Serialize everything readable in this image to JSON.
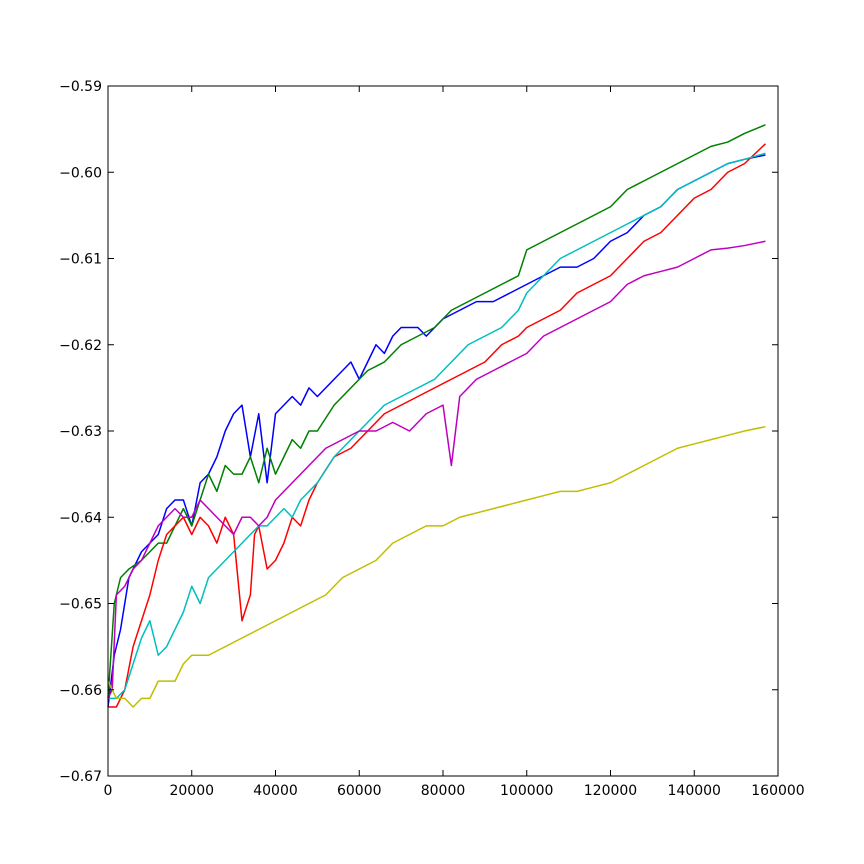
{
  "chart_data": {
    "type": "line",
    "title": "",
    "xlabel": "",
    "ylabel": "",
    "xlim": [
      0,
      160000
    ],
    "ylim": [
      -0.67,
      -0.59
    ],
    "x_ticks": [
      0,
      20000,
      40000,
      60000,
      80000,
      100000,
      120000,
      140000,
      160000
    ],
    "x_tick_labels": [
      "0",
      "20000",
      "40000",
      "60000",
      "80000",
      "100000",
      "120000",
      "140000",
      "160000"
    ],
    "y_ticks": [
      -0.67,
      -0.66,
      -0.65,
      -0.64,
      -0.63,
      -0.62,
      -0.61,
      -0.6,
      -0.59
    ],
    "y_tick_labels": [
      "−0.67",
      "−0.66",
      "−0.65",
      "−0.64",
      "−0.63",
      "−0.62",
      "−0.61",
      "−0.60",
      "−0.59"
    ],
    "grid": false,
    "legend": "none",
    "series": [
      {
        "color": "#0000ff",
        "x": [
          0,
          1500,
          3000,
          5000,
          8000,
          10000,
          12000,
          14000,
          16000,
          18000,
          20000,
          22000,
          24000,
          26000,
          28000,
          30000,
          32000,
          34000,
          36000,
          38000,
          40000,
          42000,
          44000,
          46000,
          48000,
          50000,
          54000,
          58000,
          60000,
          62000,
          64000,
          66000,
          68000,
          70000,
          72000,
          74000,
          76000,
          80000,
          84000,
          88000,
          92000,
          96000,
          100000,
          104000,
          108000,
          112000,
          116000,
          120000,
          124000,
          128000,
          132000,
          136000,
          140000,
          144000,
          148000,
          152000,
          157000
        ],
        "y": [
          -0.662,
          -0.656,
          -0.653,
          -0.647,
          -0.644,
          -0.643,
          -0.642,
          -0.639,
          -0.638,
          -0.638,
          -0.641,
          -0.636,
          -0.635,
          -0.633,
          -0.63,
          -0.628,
          -0.627,
          -0.633,
          -0.628,
          -0.636,
          -0.628,
          -0.627,
          -0.626,
          -0.627,
          -0.625,
          -0.626,
          -0.624,
          -0.622,
          -0.624,
          -0.622,
          -0.62,
          -0.621,
          -0.619,
          -0.618,
          -0.618,
          -0.618,
          -0.619,
          -0.617,
          -0.616,
          -0.615,
          -0.615,
          -0.614,
          -0.613,
          -0.612,
          -0.611,
          -0.611,
          -0.61,
          -0.608,
          -0.607,
          -0.605,
          -0.604,
          -0.602,
          -0.601,
          -0.6,
          -0.599,
          -0.5985,
          -0.598
        ]
      },
      {
        "color": "#008000",
        "x": [
          0,
          1500,
          3000,
          5000,
          8000,
          10000,
          12000,
          14000,
          16000,
          18000,
          20000,
          22000,
          24000,
          26000,
          28000,
          30000,
          32000,
          34000,
          36000,
          38000,
          40000,
          42000,
          44000,
          46000,
          48000,
          50000,
          54000,
          58000,
          62000,
          66000,
          70000,
          74000,
          78000,
          82000,
          86000,
          90000,
          94000,
          98000,
          100000,
          104000,
          108000,
          112000,
          116000,
          120000,
          124000,
          128000,
          132000,
          136000,
          140000,
          144000,
          148000,
          152000,
          157000
        ],
        "y": [
          -0.661,
          -0.65,
          -0.647,
          -0.646,
          -0.645,
          -0.644,
          -0.643,
          -0.643,
          -0.641,
          -0.639,
          -0.641,
          -0.638,
          -0.635,
          -0.637,
          -0.634,
          -0.635,
          -0.635,
          -0.633,
          -0.636,
          -0.632,
          -0.635,
          -0.633,
          -0.631,
          -0.632,
          -0.63,
          -0.63,
          -0.627,
          -0.625,
          -0.623,
          -0.622,
          -0.62,
          -0.619,
          -0.618,
          -0.616,
          -0.615,
          -0.614,
          -0.613,
          -0.612,
          -0.609,
          -0.608,
          -0.607,
          -0.606,
          -0.605,
          -0.604,
          -0.602,
          -0.601,
          -0.6,
          -0.599,
          -0.598,
          -0.597,
          -0.5965,
          -0.5955,
          -0.5945
        ]
      },
      {
        "color": "#ff0000",
        "x": [
          0,
          2000,
          4000,
          6000,
          8000,
          10000,
          12000,
          14000,
          16000,
          18000,
          20000,
          22000,
          24000,
          26000,
          28000,
          30000,
          32000,
          34000,
          35000,
          36000,
          38000,
          40000,
          42000,
          44000,
          46000,
          48000,
          50000,
          54000,
          58000,
          62000,
          66000,
          70000,
          74000,
          78000,
          82000,
          86000,
          90000,
          94000,
          98000,
          100000,
          104000,
          108000,
          112000,
          116000,
          120000,
          124000,
          128000,
          132000,
          136000,
          140000,
          144000,
          148000,
          152000,
          157000
        ],
        "y": [
          -0.662,
          -0.662,
          -0.66,
          -0.655,
          -0.652,
          -0.649,
          -0.645,
          -0.642,
          -0.641,
          -0.64,
          -0.642,
          -0.64,
          -0.641,
          -0.643,
          -0.64,
          -0.642,
          -0.652,
          -0.649,
          -0.642,
          -0.641,
          -0.646,
          -0.645,
          -0.643,
          -0.64,
          -0.641,
          -0.638,
          -0.636,
          -0.633,
          -0.632,
          -0.63,
          -0.628,
          -0.627,
          -0.626,
          -0.625,
          -0.624,
          -0.623,
          -0.622,
          -0.62,
          -0.619,
          -0.618,
          -0.617,
          -0.616,
          -0.614,
          -0.613,
          -0.612,
          -0.61,
          -0.608,
          -0.607,
          -0.605,
          -0.603,
          -0.602,
          -0.6,
          -0.599,
          -0.5967
        ]
      },
      {
        "color": "#00bfbf",
        "x": [
          0,
          2000,
          4000,
          6000,
          8000,
          10000,
          12000,
          14000,
          16000,
          18000,
          20000,
          22000,
          24000,
          26000,
          28000,
          30000,
          32000,
          34000,
          36000,
          38000,
          40000,
          42000,
          44000,
          46000,
          48000,
          50000,
          54000,
          58000,
          62000,
          66000,
          70000,
          74000,
          78000,
          82000,
          86000,
          90000,
          94000,
          98000,
          100000,
          104000,
          108000,
          112000,
          116000,
          120000,
          124000,
          128000,
          132000,
          136000,
          140000,
          144000,
          148000,
          152000,
          157000
        ],
        "y": [
          -0.661,
          -0.661,
          -0.66,
          -0.657,
          -0.654,
          -0.652,
          -0.656,
          -0.655,
          -0.653,
          -0.651,
          -0.648,
          -0.65,
          -0.647,
          -0.646,
          -0.645,
          -0.644,
          -0.643,
          -0.642,
          -0.641,
          -0.641,
          -0.64,
          -0.639,
          -0.64,
          -0.638,
          -0.637,
          -0.636,
          -0.633,
          -0.631,
          -0.629,
          -0.627,
          -0.626,
          -0.625,
          -0.624,
          -0.622,
          -0.62,
          -0.619,
          -0.618,
          -0.616,
          -0.614,
          -0.612,
          -0.61,
          -0.609,
          -0.608,
          -0.607,
          -0.606,
          -0.605,
          -0.604,
          -0.602,
          -0.601,
          -0.6,
          -0.599,
          -0.5985,
          -0.5978
        ]
      },
      {
        "color": "#bf00bf",
        "x": [
          0,
          1000,
          2000,
          4000,
          6000,
          8000,
          10000,
          12000,
          14000,
          16000,
          18000,
          20000,
          22000,
          24000,
          26000,
          28000,
          30000,
          32000,
          34000,
          36000,
          38000,
          40000,
          44000,
          48000,
          52000,
          56000,
          60000,
          64000,
          68000,
          72000,
          76000,
          80000,
          82000,
          84000,
          88000,
          92000,
          96000,
          100000,
          104000,
          108000,
          112000,
          116000,
          120000,
          124000,
          128000,
          132000,
          136000,
          140000,
          144000,
          148000,
          152000,
          157000
        ],
        "y": [
          -0.661,
          -0.66,
          -0.649,
          -0.648,
          -0.646,
          -0.645,
          -0.643,
          -0.641,
          -0.64,
          -0.639,
          -0.64,
          -0.64,
          -0.638,
          -0.639,
          -0.64,
          -0.641,
          -0.642,
          -0.64,
          -0.64,
          -0.641,
          -0.64,
          -0.638,
          -0.636,
          -0.634,
          -0.632,
          -0.631,
          -0.63,
          -0.63,
          -0.629,
          -0.63,
          -0.628,
          -0.627,
          -0.634,
          -0.626,
          -0.624,
          -0.623,
          -0.622,
          -0.621,
          -0.619,
          -0.618,
          -0.617,
          -0.616,
          -0.615,
          -0.613,
          -0.612,
          -0.6115,
          -0.611,
          -0.61,
          -0.609,
          -0.6088,
          -0.6085,
          -0.608
        ]
      },
      {
        "color": "#bfbf00",
        "x": [
          0,
          2000,
          4000,
          6000,
          8000,
          10000,
          12000,
          14000,
          16000,
          18000,
          20000,
          24000,
          28000,
          32000,
          36000,
          40000,
          44000,
          48000,
          52000,
          56000,
          60000,
          64000,
          68000,
          72000,
          76000,
          80000,
          84000,
          88000,
          92000,
          96000,
          100000,
          104000,
          108000,
          112000,
          116000,
          120000,
          124000,
          128000,
          132000,
          136000,
          140000,
          144000,
          148000,
          152000,
          157000
        ],
        "y": [
          -0.659,
          -0.661,
          -0.661,
          -0.662,
          -0.661,
          -0.661,
          -0.659,
          -0.659,
          -0.659,
          -0.657,
          -0.656,
          -0.656,
          -0.655,
          -0.654,
          -0.653,
          -0.652,
          -0.651,
          -0.65,
          -0.649,
          -0.647,
          -0.646,
          -0.645,
          -0.643,
          -0.642,
          -0.641,
          -0.641,
          -0.64,
          -0.6395,
          -0.639,
          -0.6385,
          -0.638,
          -0.6375,
          -0.637,
          -0.637,
          -0.6365,
          -0.636,
          -0.635,
          -0.634,
          -0.633,
          -0.632,
          -0.6315,
          -0.631,
          -0.6305,
          -0.63,
          -0.6295
        ]
      }
    ]
  }
}
